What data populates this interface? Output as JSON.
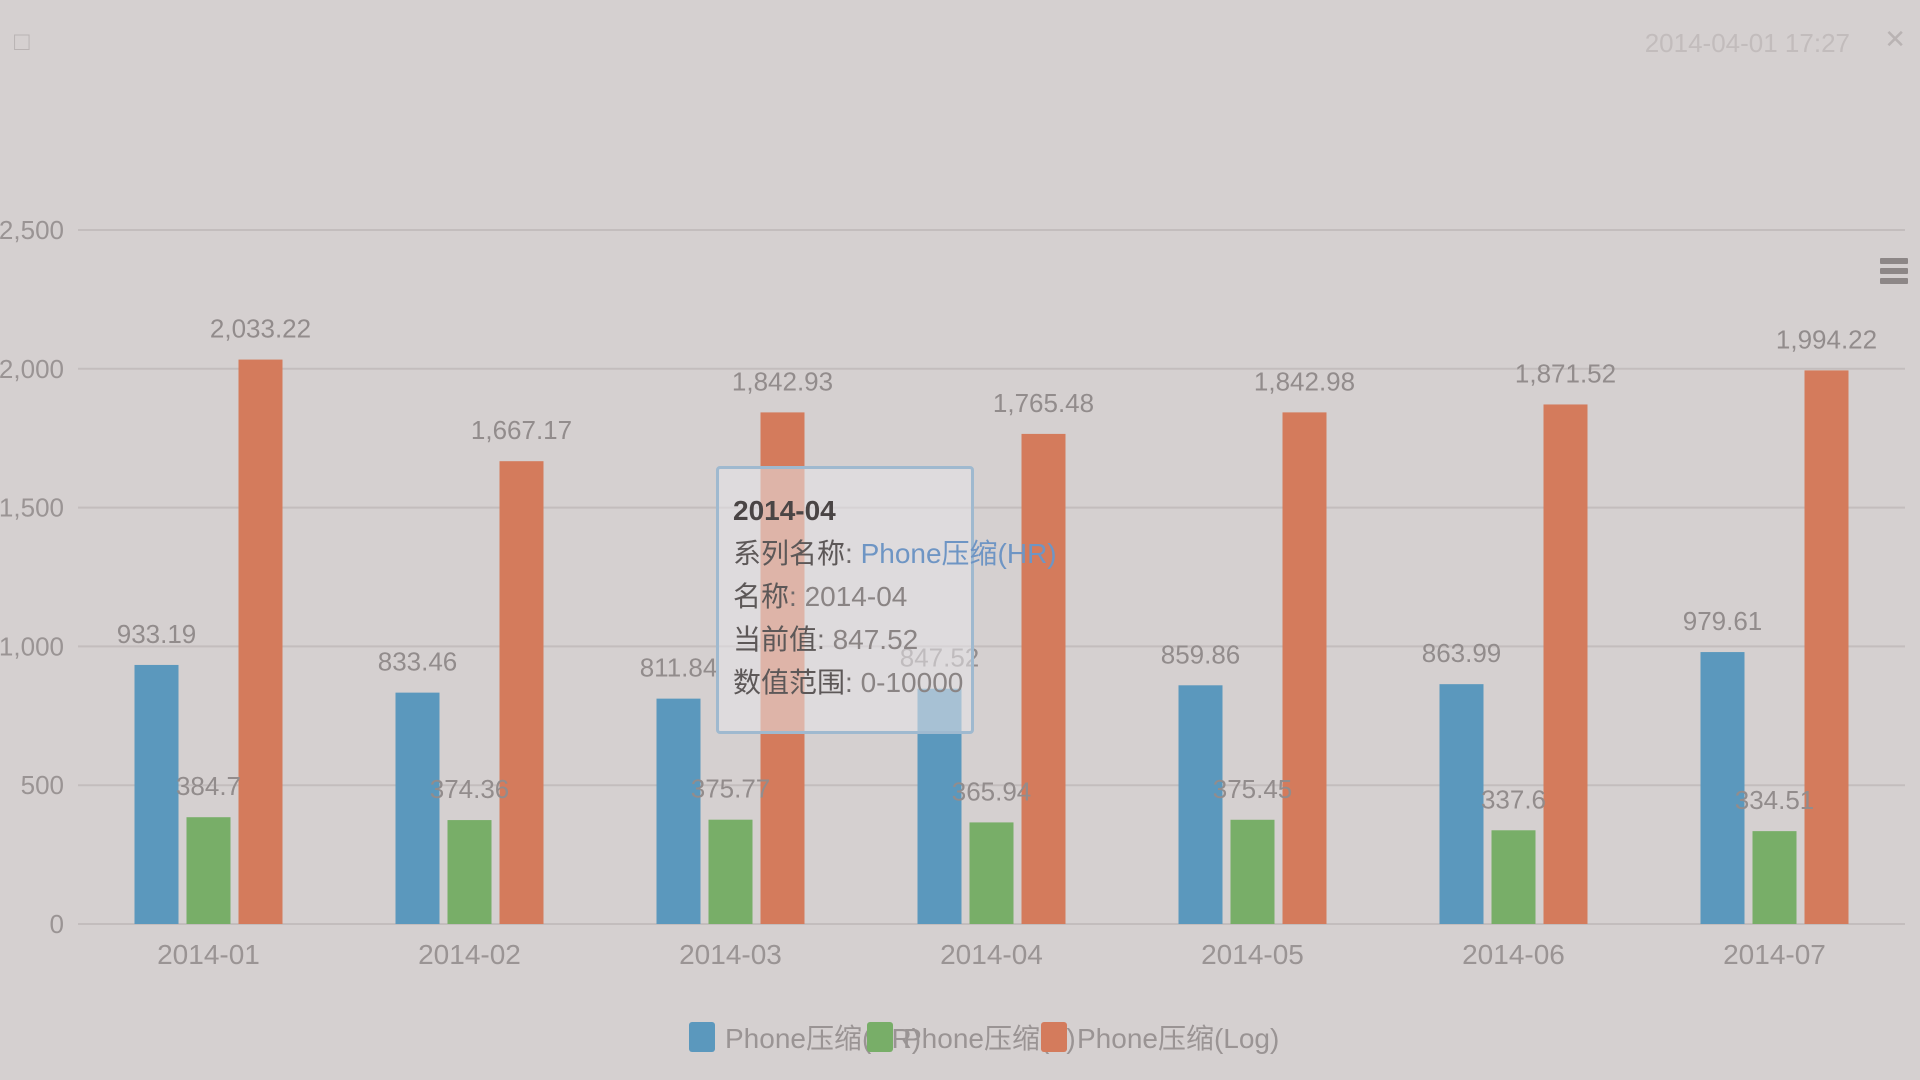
{
  "window": {
    "top_left_icon": "file-icon",
    "top_right_text": "2014-04-01 17:27",
    "top_right_icon": "close-icon"
  },
  "toolbar": {
    "menu_icon": "menu-icon"
  },
  "chart_data": {
    "type": "bar",
    "title": "",
    "xlabel": "",
    "ylabel": "",
    "categories": [
      "2014-01",
      "2014-02",
      "2014-03",
      "2014-04",
      "2014-05",
      "2014-06",
      "2014-07"
    ],
    "series": [
      {
        "name": "Phone压缩(HR)",
        "color": "#5b98bd",
        "values": [
          933.19,
          833.46,
          811.84,
          847.52,
          859.86,
          863.99,
          979.61
        ],
        "labels": [
          "933.19",
          "833.46",
          "811.84",
          "847.52",
          "859.86",
          "863.99",
          "979.61"
        ]
      },
      {
        "name": "Phone压缩(T)",
        "color": "#78ae68",
        "values": [
          384.7,
          374.36,
          375.77,
          365.94,
          375.45,
          337.6,
          334.51
        ],
        "labels": [
          "384.7",
          "374.36",
          "375.77",
          "365.94",
          "375.45",
          "337.6",
          "334.51"
        ]
      },
      {
        "name": "Phone压缩(Log)",
        "color": "#d47b5c",
        "values": [
          2033.22,
          1667.17,
          1842.93,
          1765.48,
          1842.98,
          1871.52,
          1994.22
        ],
        "labels": [
          "2,033.22",
          "1,667.17",
          "1,842.93",
          "1,765.48",
          "1,842.98",
          "1,871.52",
          "1,994.22"
        ]
      }
    ],
    "y_ticks": [
      "0",
      "500",
      "1,000",
      "1,500",
      "2,000",
      "2,500"
    ],
    "ylim": [
      0,
      2500
    ],
    "grid": true,
    "legend_position": "bottom-center",
    "tooltip": {
      "title": "2014-04",
      "rows": [
        {
          "key": "系列名称",
          "value": "Phone压缩(HR)"
        },
        {
          "key": "名称",
          "value": "2014-04"
        },
        {
          "key": "当前值",
          "value": "847.52"
        },
        {
          "key": "数值范围",
          "value": "0-10000"
        }
      ]
    }
  }
}
